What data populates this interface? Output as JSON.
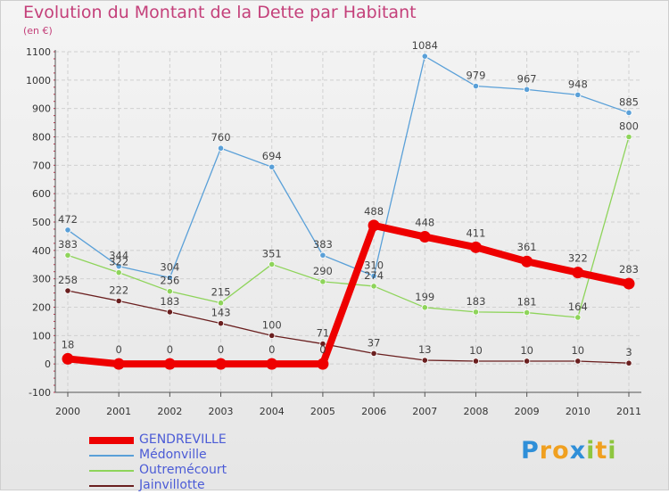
{
  "chart_data": {
    "type": "line",
    "title": "Evolution du Montant de la Dette par Habitant",
    "subtitle": "(en €)",
    "xlabel": "",
    "ylabel": "",
    "categories": [
      "2000",
      "2001",
      "2002",
      "2003",
      "2004",
      "2005",
      "2006",
      "2007",
      "2008",
      "2009",
      "2010",
      "2011"
    ],
    "ylim": [
      -100,
      1100
    ],
    "yticks": [
      -100,
      0,
      100,
      200,
      300,
      400,
      500,
      600,
      700,
      800,
      900,
      1000,
      1100
    ],
    "series": [
      {
        "name": "Médonville",
        "color": "#5aa0d8",
        "values": [
          472,
          344,
          304,
          760,
          694,
          383,
          310,
          1084,
          979,
          967,
          948,
          885
        ],
        "labels": [
          "472",
          "344",
          "304",
          "760",
          "694",
          "383",
          "310",
          "1084",
          "979",
          "967",
          "948",
          "885"
        ]
      },
      {
        "name": "Outremécourt",
        "color": "#8ed45a",
        "values": [
          383,
          322,
          256,
          215,
          351,
          290,
          274,
          199,
          183,
          181,
          164,
          800
        ],
        "labels": [
          "383",
          "322",
          "256",
          "215",
          "351",
          "290",
          "274",
          "199",
          "183",
          "181",
          "164",
          "800"
        ]
      },
      {
        "name": "Jainvillotte",
        "color": "#6a1f1f",
        "values": [
          258,
          222,
          183,
          143,
          100,
          71,
          37,
          13,
          10,
          10,
          10,
          3
        ],
        "labels": [
          "258",
          "222",
          "183",
          "143",
          "100",
          "71",
          "37",
          "13",
          "10",
          "10",
          "10",
          "3"
        ]
      },
      {
        "name": "GENDREVILLE",
        "color": "#ee0000",
        "values": [
          18,
          0,
          0,
          0,
          0,
          0,
          488,
          448,
          411,
          361,
          322,
          283
        ],
        "labels": [
          "18",
          "0",
          "0",
          "0",
          "0",
          "0",
          "488",
          "448",
          "411",
          "361",
          "322",
          "283"
        ]
      }
    ],
    "legend": [
      {
        "name": "GENDREVILLE",
        "color": "#ee0000",
        "weight": "thick"
      },
      {
        "name": "Médonville",
        "color": "#5aa0d8",
        "weight": "thin"
      },
      {
        "name": "Outremécourt",
        "color": "#8ed45a",
        "weight": "thin"
      },
      {
        "name": "Jainvillotte",
        "color": "#6a1f1f",
        "weight": "thin"
      }
    ],
    "legend_position": "bottom-left"
  },
  "logo": {
    "letters": [
      "P",
      "r",
      "o",
      "x",
      "i",
      "t",
      "i"
    ],
    "colors": [
      "#2f8fd8",
      "#f0a020",
      "#f0a020",
      "#2f8fd8",
      "#8ec63f",
      "#f0a020",
      "#8ec63f"
    ]
  }
}
